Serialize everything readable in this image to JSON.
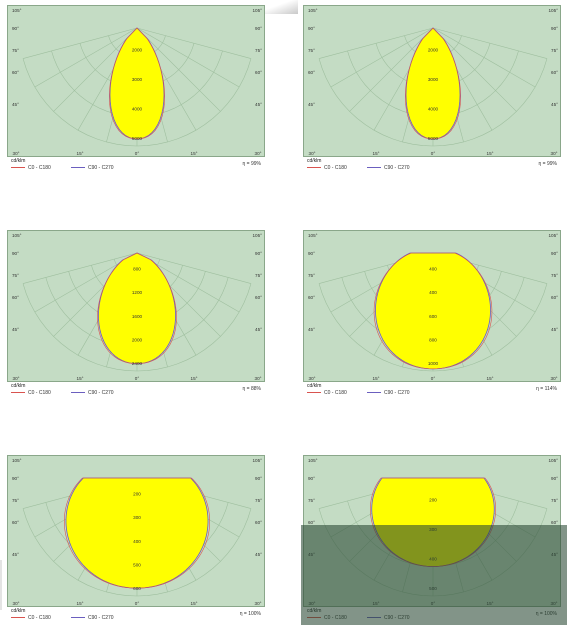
{
  "chart_data": [
    {
      "type": "polar-luminous-intensity",
      "unit_label": "cd/klm",
      "legend": [
        "C0 - C180",
        "C90 - C270"
      ],
      "efficiency": "η = 99%",
      "angle_labels_left": [
        "105°",
        "90°",
        "75°",
        "60°",
        "45°"
      ],
      "angle_labels_right": [
        "105°",
        "90°",
        "75°",
        "60°",
        "45°"
      ],
      "bottom_labels": [
        "30°",
        "15°",
        "0°",
        "15°",
        "30°"
      ],
      "rings": [
        "2000",
        "3000",
        "4000",
        "5000"
      ],
      "max_ring": 5000,
      "beam_half_angle_deg": 17,
      "curve_max": 4700
    },
    {
      "type": "polar-luminous-intensity",
      "unit_label": "cd/klm",
      "legend": [
        "C0 - C180",
        "C90 - C270"
      ],
      "efficiency": "η = 99%",
      "angle_labels_left": [
        "105°",
        "90°",
        "75°",
        "60°",
        "45°"
      ],
      "angle_labels_right": [
        "105°",
        "90°",
        "75°",
        "60°",
        "45°"
      ],
      "bottom_labels": [
        "30°",
        "15°",
        "0°",
        "15°",
        "30°"
      ],
      "rings": [
        "2000",
        "3000",
        "4000",
        "5000"
      ],
      "max_ring": 5000,
      "beam_half_angle_deg": 17,
      "curve_max": 4700
    },
    {
      "type": "polar-luminous-intensity",
      "unit_label": "cd/klm",
      "legend": [
        "C0 - C180",
        "C90 - C270"
      ],
      "efficiency": "η = 88%",
      "angle_labels_left": [
        "105°",
        "90°",
        "75°",
        "60°",
        "45°"
      ],
      "angle_labels_right": [
        "105°",
        "90°",
        "75°",
        "60°",
        "45°"
      ],
      "bottom_labels": [
        "30°",
        "15°",
        "0°",
        "15°",
        "30°"
      ],
      "rings": [
        "800",
        "1200",
        "1600",
        "2000",
        "2400"
      ],
      "max_ring": 2400,
      "beam_half_angle_deg": 25,
      "curve_max": 2250
    },
    {
      "type": "polar-luminous-intensity",
      "unit_label": "cd/klm",
      "legend": [
        "C0 - C180",
        "C90 - C270"
      ],
      "efficiency": "η = 114%",
      "angle_labels_left": [
        "105°",
        "90°",
        "75°",
        "60°",
        "45°"
      ],
      "angle_labels_right": [
        "105°",
        "90°",
        "75°",
        "60°",
        "45°"
      ],
      "bottom_labels": [
        "30°",
        "15°",
        "0°",
        "15°",
        "30°"
      ],
      "rings": [
        "400",
        "400",
        "600",
        "800",
        "1000"
      ],
      "max_ring": 1100,
      "beam_half_angle_deg": 38,
      "curve_max": 1080
    },
    {
      "type": "polar-luminous-intensity",
      "unit_label": "cd/klm",
      "legend": [
        "C0 - C180",
        "C90 - C270"
      ],
      "efficiency": "η = 100%",
      "angle_labels_left": [
        "105°",
        "90°",
        "75°",
        "60°",
        "45°"
      ],
      "angle_labels_right": [
        "105°",
        "90°",
        "75°",
        "60°",
        "45°"
      ],
      "bottom_labels": [
        "30°",
        "15°",
        "0°",
        "15°",
        "30°"
      ],
      "rings": [
        "200",
        "300",
        "400",
        "500",
        "600"
      ],
      "max_ring": 600,
      "beam_half_angle_deg": 55,
      "curve_max": 560
    },
    {
      "type": "polar-luminous-intensity",
      "unit_label": "cd/klm",
      "legend": [
        "C0 - C180",
        "C90 - C270"
      ],
      "efficiency": "η = 100%",
      "angle_labels_left": [
        "105°",
        "90°",
        "75°",
        "60°",
        "45°"
      ],
      "angle_labels_right": [
        "105°",
        "90°",
        "75°",
        "60°",
        "45°"
      ],
      "bottom_labels": [
        "30°",
        "15°",
        "0°",
        "15°",
        "30°"
      ],
      "rings": [
        "200",
        "300",
        "400",
        "500"
      ],
      "max_ring": 560,
      "beam_half_angle_deg": 62,
      "curve_max": 420
    }
  ]
}
